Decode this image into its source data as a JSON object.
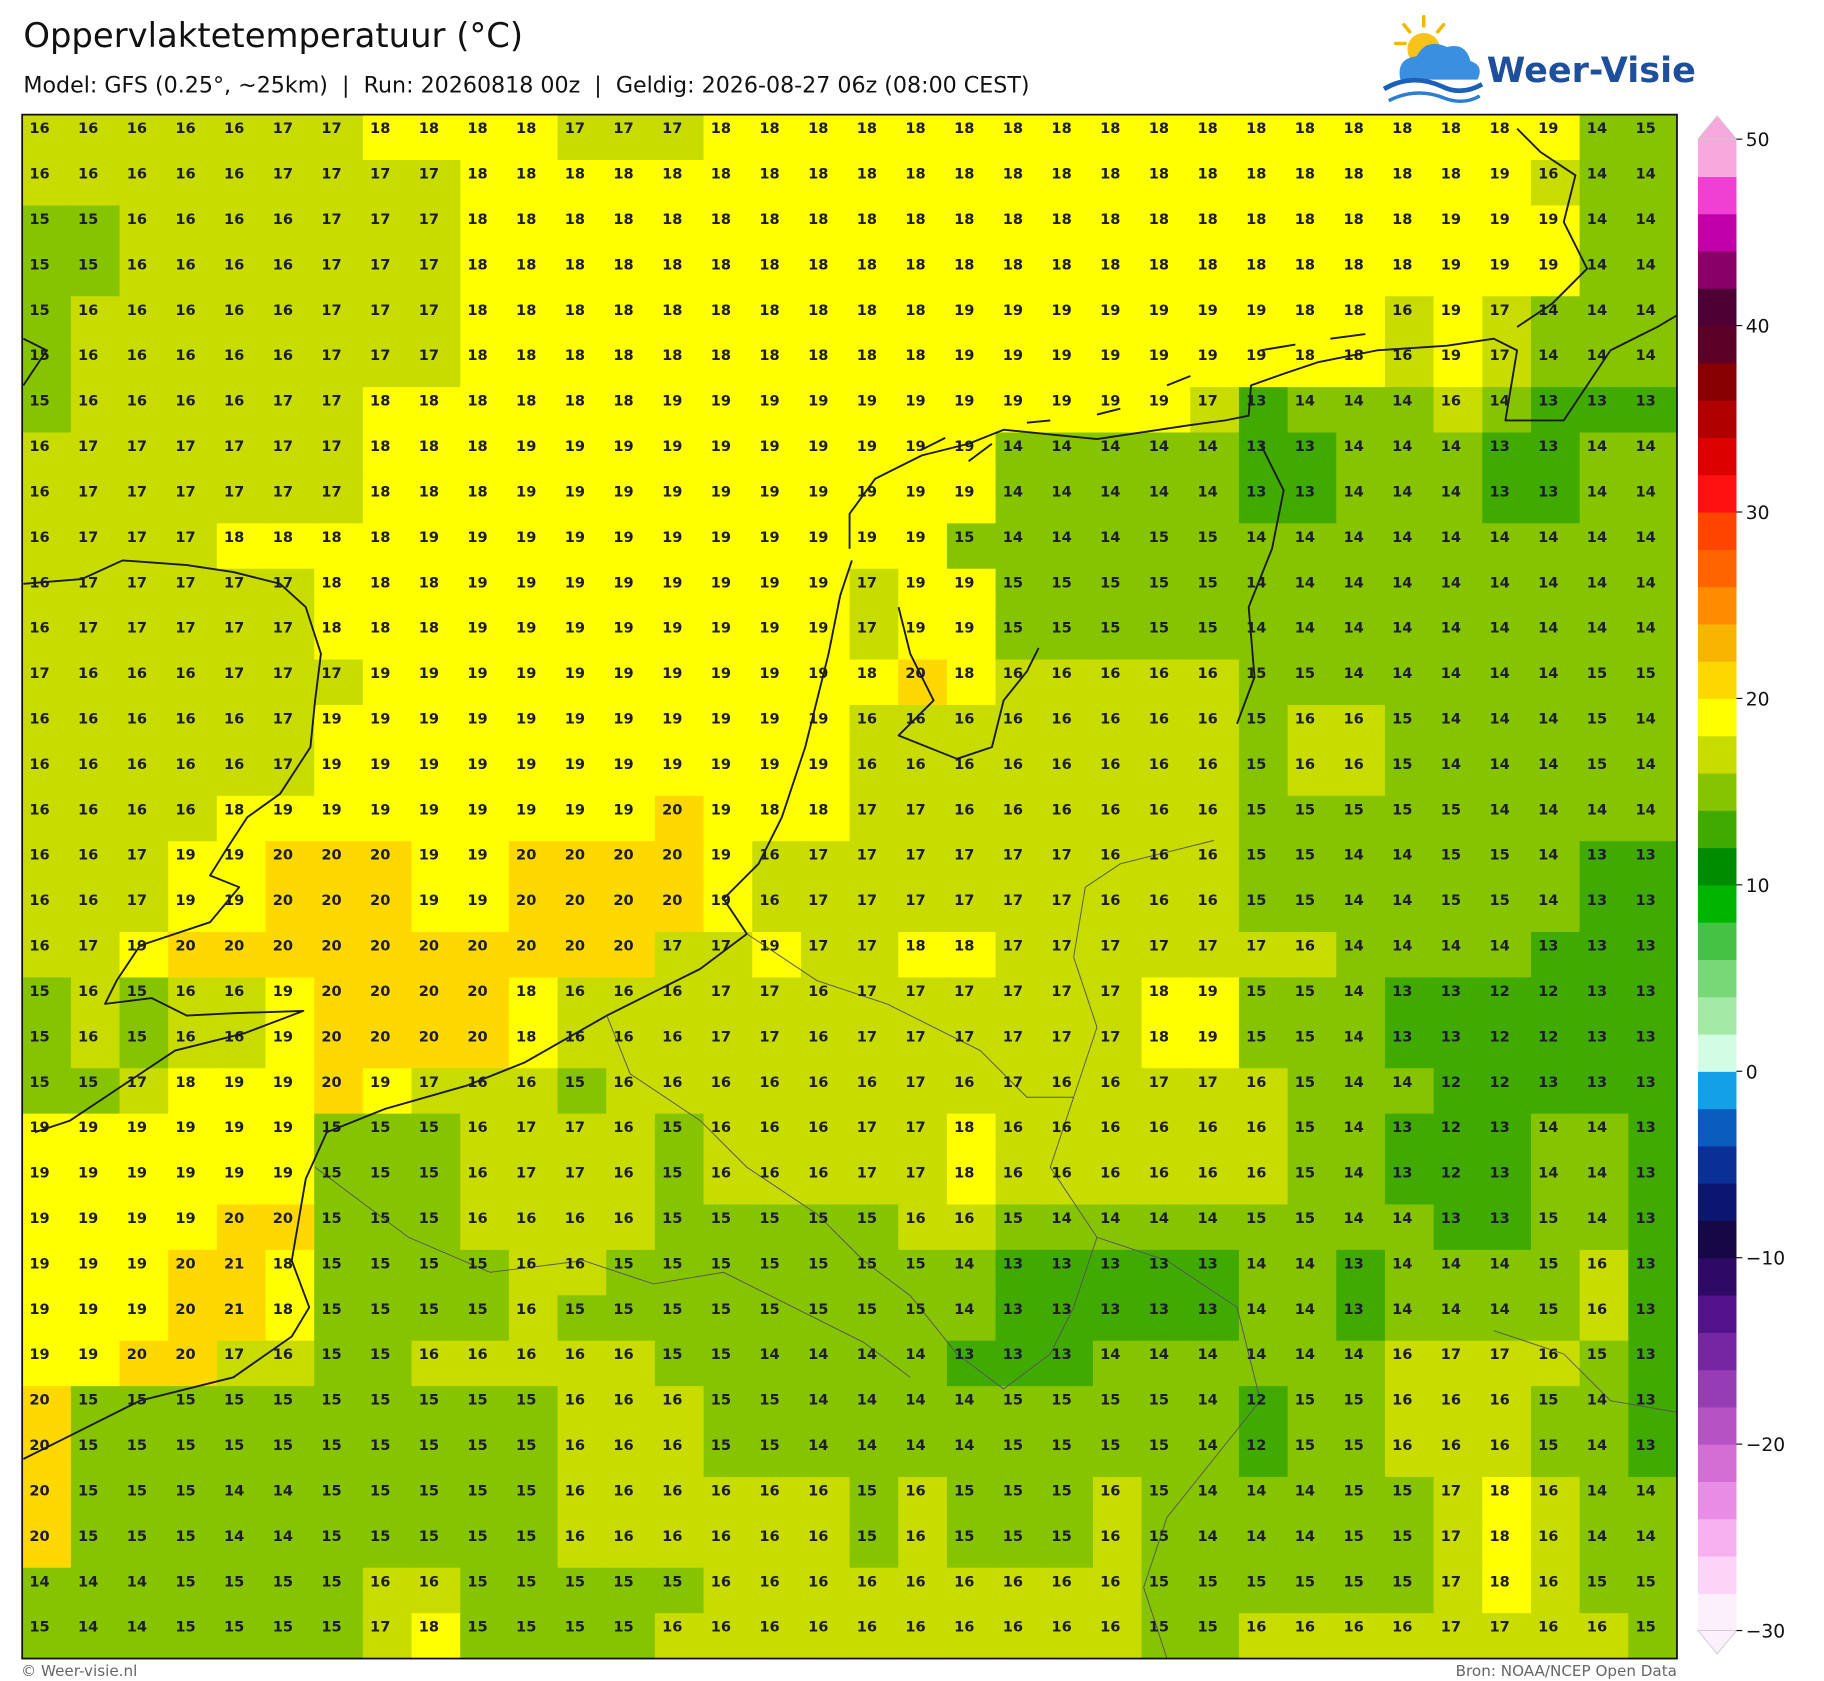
{
  "header": {
    "title": "Oppervlaktetemperatuur (°C)",
    "subtitle": "Model: GFS (0.25°, ~25km)  |  Run: 20260818 00z  |  Geldig: 2026-08-27 06z (08:00 CEST)",
    "logo": "Weer-Visie"
  },
  "map": {
    "grid": [
      [
        16,
        16,
        16,
        16,
        16,
        17,
        17,
        18,
        18,
        18,
        18,
        17,
        17,
        17,
        18,
        18,
        18,
        18,
        18,
        18,
        18,
        18,
        18,
        18,
        18,
        18,
        18,
        18,
        18,
        18,
        18,
        19,
        14,
        15
      ],
      [
        16,
        16,
        16,
        16,
        16,
        17,
        17,
        17,
        17,
        18,
        18,
        18,
        18,
        18,
        18,
        18,
        18,
        18,
        18,
        18,
        18,
        18,
        18,
        18,
        18,
        18,
        18,
        18,
        18,
        18,
        19,
        16,
        14,
        14
      ],
      [
        15,
        15,
        16,
        16,
        16,
        16,
        17,
        17,
        17,
        18,
        18,
        18,
        18,
        18,
        18,
        18,
        18,
        18,
        18,
        18,
        18,
        18,
        18,
        18,
        18,
        18,
        18,
        18,
        18,
        19,
        19,
        19,
        14,
        14
      ],
      [
        15,
        15,
        16,
        16,
        16,
        16,
        17,
        17,
        17,
        18,
        18,
        18,
        18,
        18,
        18,
        18,
        18,
        18,
        18,
        18,
        18,
        18,
        18,
        18,
        18,
        18,
        18,
        18,
        18,
        19,
        19,
        19,
        14,
        14
      ],
      [
        15,
        16,
        16,
        16,
        16,
        16,
        17,
        17,
        17,
        18,
        18,
        18,
        18,
        18,
        18,
        18,
        18,
        18,
        18,
        19,
        19,
        19,
        19,
        19,
        19,
        19,
        18,
        18,
        16,
        19,
        17,
        14,
        14,
        14
      ],
      [
        15,
        16,
        16,
        16,
        16,
        16,
        17,
        17,
        17,
        18,
        18,
        18,
        18,
        18,
        18,
        18,
        18,
        18,
        18,
        19,
        19,
        19,
        19,
        19,
        19,
        19,
        18,
        18,
        16,
        19,
        17,
        14,
        14,
        14
      ],
      [
        15,
        16,
        16,
        16,
        16,
        17,
        17,
        18,
        18,
        18,
        18,
        18,
        18,
        19,
        19,
        19,
        19,
        19,
        19,
        19,
        19,
        19,
        19,
        19,
        17,
        13,
        14,
        14,
        14,
        16,
        14,
        13,
        13,
        13
      ],
      [
        16,
        17,
        17,
        17,
        17,
        17,
        17,
        18,
        18,
        18,
        19,
        19,
        19,
        19,
        19,
        19,
        19,
        19,
        19,
        19,
        14,
        14,
        14,
        14,
        14,
        13,
        13,
        14,
        14,
        14,
        13,
        13,
        14,
        14
      ],
      [
        16,
        17,
        17,
        17,
        17,
        17,
        17,
        18,
        18,
        18,
        19,
        19,
        19,
        19,
        19,
        19,
        19,
        19,
        19,
        19,
        14,
        14,
        14,
        14,
        14,
        13,
        13,
        14,
        14,
        14,
        13,
        13,
        14,
        14
      ],
      [
        16,
        17,
        17,
        17,
        18,
        18,
        18,
        18,
        19,
        19,
        19,
        19,
        19,
        19,
        19,
        19,
        19,
        19,
        19,
        15,
        14,
        14,
        14,
        15,
        15,
        14,
        14,
        14,
        14,
        14,
        14,
        14,
        14,
        14
      ],
      [
        16,
        17,
        17,
        17,
        17,
        17,
        18,
        18,
        18,
        19,
        19,
        19,
        19,
        19,
        19,
        19,
        19,
        17,
        19,
        19,
        15,
        15,
        15,
        15,
        15,
        14,
        14,
        14,
        14,
        14,
        14,
        14,
        14,
        14
      ],
      [
        16,
        17,
        17,
        17,
        17,
        17,
        18,
        18,
        18,
        19,
        19,
        19,
        19,
        19,
        19,
        19,
        19,
        17,
        19,
        19,
        15,
        15,
        15,
        15,
        15,
        14,
        14,
        14,
        14,
        14,
        14,
        14,
        14,
        14
      ],
      [
        17,
        16,
        16,
        16,
        17,
        17,
        17,
        19,
        19,
        19,
        19,
        19,
        19,
        19,
        19,
        19,
        19,
        18,
        20,
        18,
        16,
        16,
        16,
        16,
        16,
        15,
        15,
        14,
        14,
        14,
        14,
        14,
        15,
        15
      ],
      [
        16,
        16,
        16,
        16,
        16,
        17,
        19,
        19,
        19,
        19,
        19,
        19,
        19,
        19,
        19,
        19,
        19,
        16,
        16,
        16,
        16,
        16,
        16,
        16,
        16,
        15,
        16,
        16,
        15,
        14,
        14,
        14,
        15,
        14
      ],
      [
        16,
        16,
        16,
        16,
        16,
        17,
        19,
        19,
        19,
        19,
        19,
        19,
        19,
        19,
        19,
        19,
        19,
        16,
        16,
        16,
        16,
        16,
        16,
        16,
        16,
        15,
        16,
        16,
        15,
        14,
        14,
        14,
        15,
        14
      ],
      [
        16,
        16,
        16,
        16,
        18,
        19,
        19,
        19,
        19,
        19,
        19,
        19,
        19,
        20,
        19,
        18,
        18,
        17,
        17,
        16,
        16,
        16,
        16,
        16,
        16,
        15,
        15,
        15,
        15,
        15,
        14,
        14,
        14,
        14
      ],
      [
        16,
        16,
        17,
        19,
        19,
        20,
        20,
        20,
        19,
        19,
        20,
        20,
        20,
        20,
        19,
        16,
        17,
        17,
        17,
        17,
        17,
        17,
        16,
        16,
        16,
        15,
        15,
        14,
        14,
        15,
        15,
        14,
        13,
        13
      ],
      [
        16,
        16,
        17,
        19,
        19,
        20,
        20,
        20,
        19,
        19,
        20,
        20,
        20,
        20,
        19,
        16,
        17,
        17,
        17,
        17,
        17,
        17,
        16,
        16,
        16,
        15,
        15,
        14,
        14,
        15,
        15,
        14,
        13,
        13
      ],
      [
        16,
        17,
        19,
        20,
        20,
        20,
        20,
        20,
        20,
        20,
        20,
        20,
        20,
        17,
        17,
        19,
        17,
        17,
        18,
        18,
        17,
        17,
        17,
        17,
        17,
        17,
        16,
        14,
        14,
        14,
        14,
        13,
        13,
        13
      ],
      [
        15,
        16,
        15,
        16,
        16,
        19,
        20,
        20,
        20,
        20,
        18,
        16,
        16,
        16,
        17,
        17,
        16,
        17,
        17,
        17,
        17,
        17,
        17,
        18,
        19,
        15,
        15,
        14,
        13,
        13,
        12,
        12,
        13,
        13
      ],
      [
        15,
        16,
        15,
        16,
        16,
        19,
        20,
        20,
        20,
        20,
        18,
        16,
        16,
        16,
        17,
        17,
        16,
        17,
        17,
        17,
        17,
        17,
        17,
        18,
        19,
        15,
        15,
        14,
        13,
        13,
        12,
        12,
        13,
        13
      ],
      [
        15,
        15,
        17,
        18,
        19,
        19,
        20,
        19,
        17,
        16,
        16,
        15,
        16,
        16,
        16,
        16,
        16,
        16,
        17,
        16,
        17,
        16,
        16,
        17,
        17,
        16,
        15,
        14,
        14,
        12,
        12,
        13,
        13,
        13
      ],
      [
        19,
        19,
        19,
        19,
        19,
        19,
        15,
        15,
        15,
        16,
        17,
        17,
        16,
        15,
        16,
        16,
        16,
        17,
        17,
        18,
        16,
        16,
        16,
        16,
        16,
        16,
        15,
        14,
        13,
        12,
        13,
        14,
        14,
        13
      ],
      [
        19,
        19,
        19,
        19,
        19,
        19,
        15,
        15,
        15,
        16,
        17,
        17,
        16,
        15,
        16,
        16,
        16,
        17,
        17,
        18,
        16,
        16,
        16,
        16,
        16,
        16,
        15,
        14,
        13,
        12,
        13,
        14,
        14,
        13
      ],
      [
        19,
        19,
        19,
        19,
        20,
        20,
        15,
        15,
        15,
        16,
        16,
        16,
        16,
        15,
        15,
        15,
        15,
        15,
        16,
        16,
        15,
        14,
        14,
        14,
        14,
        15,
        15,
        14,
        14,
        13,
        13,
        15,
        14,
        13
      ],
      [
        19,
        19,
        19,
        20,
        21,
        18,
        15,
        15,
        15,
        15,
        16,
        16,
        15,
        15,
        15,
        15,
        15,
        15,
        15,
        14,
        13,
        13,
        13,
        13,
        13,
        14,
        14,
        13,
        14,
        14,
        14,
        15,
        16,
        13
      ],
      [
        19,
        19,
        19,
        20,
        21,
        18,
        15,
        15,
        15,
        15,
        16,
        15,
        15,
        15,
        15,
        15,
        15,
        15,
        15,
        14,
        13,
        13,
        13,
        13,
        13,
        14,
        14,
        13,
        14,
        14,
        14,
        15,
        16,
        13
      ],
      [
        19,
        19,
        20,
        20,
        17,
        16,
        15,
        15,
        16,
        16,
        16,
        16,
        16,
        15,
        15,
        14,
        14,
        14,
        14,
        13,
        13,
        13,
        14,
        14,
        14,
        14,
        14,
        14,
        16,
        17,
        17,
        16,
        15,
        13
      ],
      [
        20,
        15,
        15,
        15,
        15,
        15,
        15,
        15,
        15,
        15,
        15,
        16,
        16,
        16,
        15,
        15,
        14,
        14,
        14,
        14,
        15,
        15,
        15,
        15,
        14,
        12,
        15,
        15,
        16,
        16,
        16,
        15,
        14,
        13
      ],
      [
        20,
        15,
        15,
        15,
        15,
        15,
        15,
        15,
        15,
        15,
        15,
        16,
        16,
        16,
        15,
        15,
        14,
        14,
        14,
        14,
        15,
        15,
        15,
        15,
        14,
        12,
        15,
        15,
        16,
        16,
        16,
        15,
        14,
        13
      ],
      [
        20,
        15,
        15,
        15,
        14,
        14,
        15,
        15,
        15,
        15,
        15,
        16,
        16,
        16,
        16,
        16,
        16,
        15,
        16,
        15,
        15,
        15,
        16,
        15,
        14,
        14,
        14,
        15,
        15,
        17,
        18,
        16,
        14,
        14
      ],
      [
        20,
        15,
        15,
        15,
        14,
        14,
        15,
        15,
        15,
        15,
        15,
        16,
        16,
        16,
        16,
        16,
        16,
        15,
        16,
        15,
        15,
        15,
        16,
        15,
        14,
        14,
        14,
        15,
        15,
        17,
        18,
        16,
        14,
        14
      ],
      [
        14,
        14,
        14,
        15,
        15,
        15,
        15,
        16,
        16,
        15,
        15,
        15,
        15,
        15,
        16,
        16,
        16,
        16,
        16,
        16,
        16,
        16,
        16,
        15,
        15,
        15,
        15,
        15,
        15,
        17,
        18,
        16,
        15,
        15
      ],
      [
        15,
        14,
        14,
        15,
        15,
        15,
        15,
        17,
        18,
        15,
        15,
        15,
        15,
        16,
        16,
        16,
        16,
        16,
        16,
        16,
        16,
        16,
        16,
        15,
        15,
        16,
        16,
        16,
        16,
        17,
        17,
        16,
        16,
        15
      ]
    ]
  },
  "colorbar": {
    "range": [
      -30,
      50
    ],
    "colors": [
      "#fcf0fc",
      "#fcd4f8",
      "#f6b0f0",
      "#e88ce6",
      "#d46ed4",
      "#b652c4",
      "#963cb4",
      "#7626a2",
      "#52128c",
      "#2e0a66",
      "#160846",
      "#0a1670",
      "#0a3098",
      "#0a5cbc",
      "#14a0e6",
      "#d2fce4",
      "#a4eaa4",
      "#78d878",
      "#44c244",
      "#00b400",
      "#008c00",
      "#40aa00",
      "#86c400",
      "#c8dc00",
      "#ffff00",
      "#ffd800",
      "#f8b400",
      "#ff8c00",
      "#ff6400",
      "#ff4400",
      "#ff1010",
      "#dc0000",
      "#b00000",
      "#880000",
      "#5c0028",
      "#4e0034",
      "#880068",
      "#c000a8",
      "#f040d4",
      "#f8a8dc"
    ],
    "ticks": [
      50,
      40,
      30,
      20,
      10,
      0,
      {
        "value": -10,
        "label": "−10"
      },
      {
        "value": -20,
        "label": "−20"
      },
      {
        "value": -30,
        "label": "−30"
      }
    ]
  },
  "footer": {
    "left": "© Weer-visie.nl",
    "right": "Bron: NOAA/NCEP Open Data"
  }
}
